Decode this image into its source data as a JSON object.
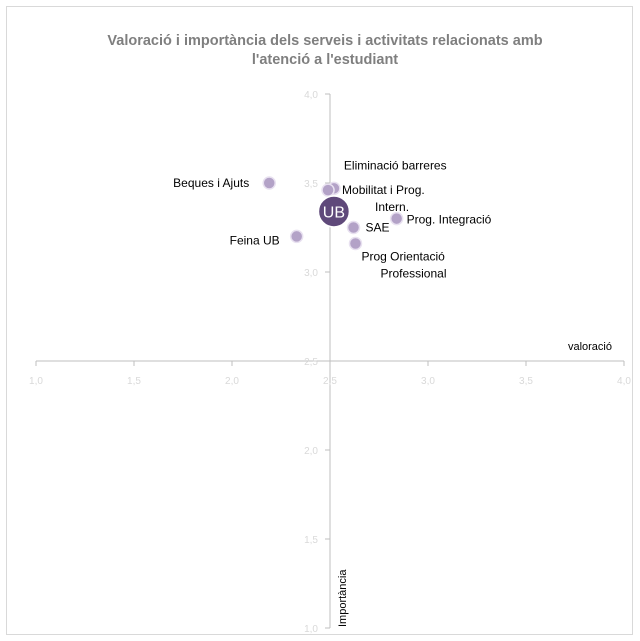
{
  "chart_data": {
    "type": "scatter",
    "title_line1": "Valoració i importància dels serveis i activitats relacionats amb",
    "title_line2": "l'atenció a l'estudiant",
    "xlabel": "valoració",
    "ylabel": "Importància",
    "xlim": [
      1.0,
      4.0
    ],
    "ylim": [
      1.0,
      4.0
    ],
    "axis_cross": {
      "x": 2.5,
      "y": 2.5
    },
    "x_ticks": [
      "1,0",
      "1,5",
      "2,0",
      "2,5",
      "3,0",
      "3,5",
      "4,0"
    ],
    "y_ticks": [
      "1,0",
      "1,5",
      "2,0",
      "2,5",
      "3,0",
      "3,5",
      "4,0"
    ],
    "grid": false,
    "point_color": "#b3a2c7",
    "highlight_color": "#5f497a",
    "points": [
      {
        "label": "Beques i Ajuts",
        "x": 2.19,
        "y": 3.5
      },
      {
        "label": "Eliminació barreres",
        "x": 2.52,
        "y": 3.47
      },
      {
        "label": "Mobilitat i Prog. Intern.",
        "x": 2.49,
        "y": 3.46
      },
      {
        "label": "Prog. Integració",
        "x": 2.84,
        "y": 3.3
      },
      {
        "label": "SAE",
        "x": 2.62,
        "y": 3.25
      },
      {
        "label": "Feina UB",
        "x": 2.33,
        "y": 3.2
      },
      {
        "label": "Prog Orientació Professional",
        "x": 2.63,
        "y": 3.16
      },
      {
        "label": "UB",
        "x": 2.52,
        "y": 3.34,
        "highlight": true
      }
    ]
  }
}
